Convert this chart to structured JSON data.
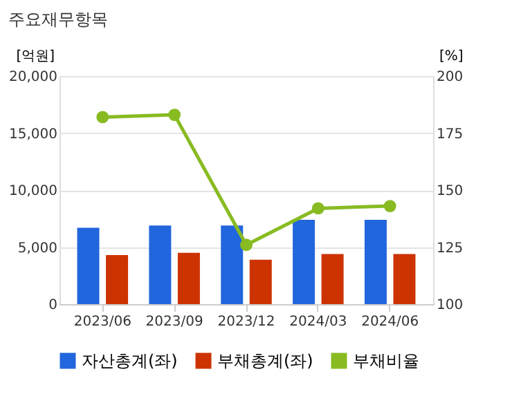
{
  "chart_data": {
    "type": "bar",
    "title": "주요재무항목",
    "ylabel": "[억원]",
    "y2label": "[%]",
    "categories": [
      "2023/06",
      "2023/09",
      "2023/12",
      "2024/03",
      "2024/06"
    ],
    "series": [
      {
        "name": "자산총계(좌)",
        "color": "#2266dd",
        "values": [
          6700,
          6900,
          6900,
          7400,
          7400
        ]
      },
      {
        "name": "부채총계(좌)",
        "color": "#cc3300",
        "values": [
          4300,
          4500,
          3900,
          4400,
          4400
        ]
      },
      {
        "name": "부채비율",
        "type": "line",
        "axis": "y2",
        "color": "#88bb22",
        "marker": "circle",
        "line_style": "solid",
        "values": [
          182,
          183,
          126,
          142,
          143
        ]
      }
    ],
    "ylim": [
      0,
      20000
    ],
    "yticks": [
      0,
      {
        "value": 5000,
        "label": "5,000"
      },
      {
        "value": 10000,
        "label": "10,000"
      },
      {
        "value": 15000,
        "label": "15,000"
      },
      {
        "value": 20000,
        "label": "20,000"
      }
    ],
    "y2lim": [
      100,
      200
    ],
    "y2ticks": [
      100,
      125,
      150,
      175,
      200
    ],
    "grid": "y",
    "legend": "bottom"
  }
}
